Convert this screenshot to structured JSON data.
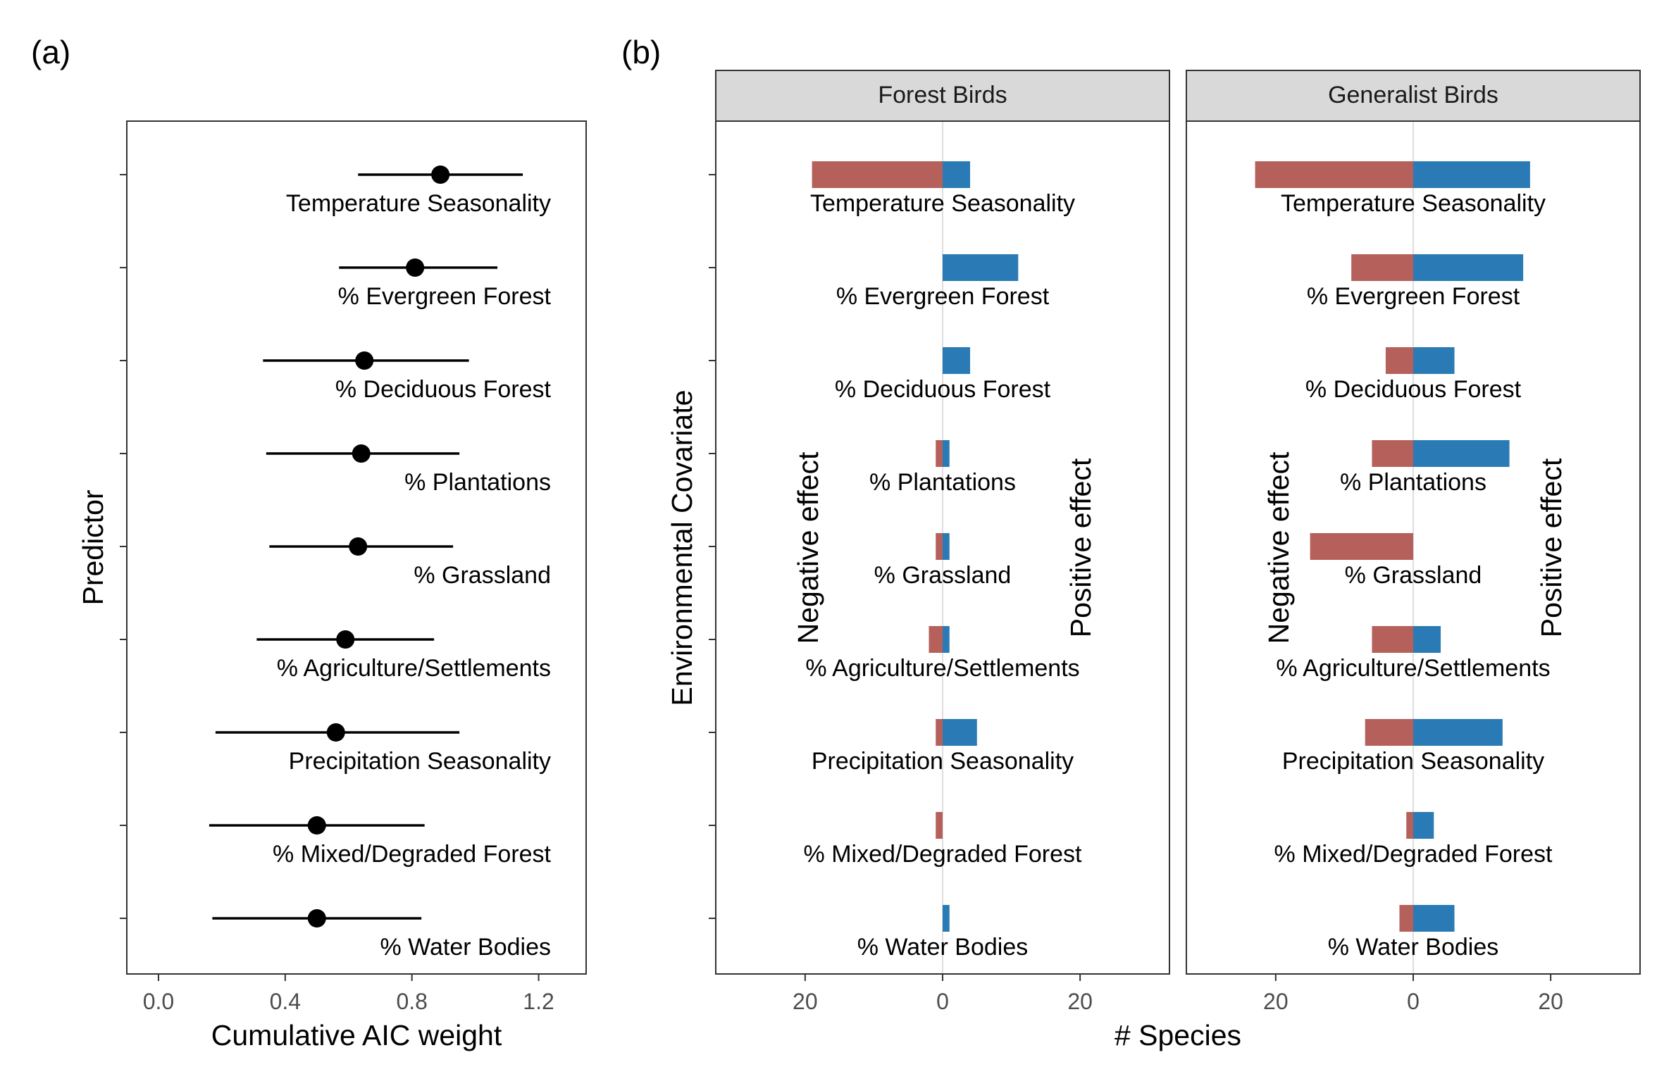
{
  "panels": {
    "a": {
      "letter": "(a)"
    },
    "b": {
      "letter": "(b)"
    }
  },
  "chart_data": [
    {
      "type": "scatter",
      "subtype": "dot-and-interval",
      "panel": "(a)",
      "xlabel": "Cumulative AIC weight",
      "ylabel": "Predictor",
      "xlim": [
        -0.1,
        1.35
      ],
      "x_ticks": [
        0.0,
        0.4,
        0.8,
        1.2
      ],
      "x_tick_labels": [
        "0.0",
        "0.4",
        "0.8",
        "1.2"
      ],
      "grid": false,
      "categories": [
        "Temperature Seasonality",
        "% Evergreen Forest",
        "% Deciduous Forest",
        "% Plantations",
        "% Grassland",
        "% Agriculture/Settlements",
        "Precipitation Seasonality",
        "% Mixed/Degraded Forest",
        "% Water Bodies"
      ],
      "values": [
        0.89,
        0.81,
        0.65,
        0.64,
        0.63,
        0.59,
        0.56,
        0.5,
        0.5
      ],
      "lower": [
        0.63,
        0.57,
        0.33,
        0.34,
        0.35,
        0.31,
        0.18,
        0.16,
        0.17
      ],
      "upper": [
        1.15,
        1.07,
        0.98,
        0.95,
        0.93,
        0.87,
        0.95,
        0.84,
        0.83
      ]
    },
    {
      "type": "bar",
      "subtype": "diverging-horizontal",
      "panel": "(b)",
      "xlabel": "# Species",
      "ylabel": "Environmental Covariate",
      "xlim": [
        -33,
        33
      ],
      "x_ticks": [
        -20,
        0,
        20
      ],
      "x_tick_labels": [
        "20",
        "0",
        "20"
      ],
      "negative_label": "Negative effect",
      "positive_label": "Positive effect",
      "colors": {
        "negative": "#b5605b",
        "positive": "#2a7ab5"
      },
      "categories": [
        "Temperature Seasonality",
        "% Evergreen Forest",
        "% Deciduous Forest",
        "% Plantations",
        "% Grassland",
        "% Agriculture/Settlements",
        "Precipitation Seasonality",
        "% Mixed/Degraded Forest",
        "% Water Bodies"
      ],
      "facets": [
        {
          "title": "Forest Birds",
          "series": [
            {
              "name": "Negative effect",
              "values": [
                19,
                0,
                0,
                1,
                1,
                2,
                1,
                1,
                0
              ]
            },
            {
              "name": "Positive effect",
              "values": [
                4,
                11,
                4,
                1,
                1,
                1,
                5,
                0,
                1
              ]
            }
          ]
        },
        {
          "title": "Generalist Birds",
          "series": [
            {
              "name": "Negative effect",
              "values": [
                23,
                9,
                4,
                6,
                15,
                6,
                7,
                1,
                2
              ]
            },
            {
              "name": "Positive effect",
              "values": [
                17,
                16,
                6,
                14,
                0,
                4,
                13,
                3,
                6
              ]
            }
          ]
        }
      ]
    }
  ]
}
